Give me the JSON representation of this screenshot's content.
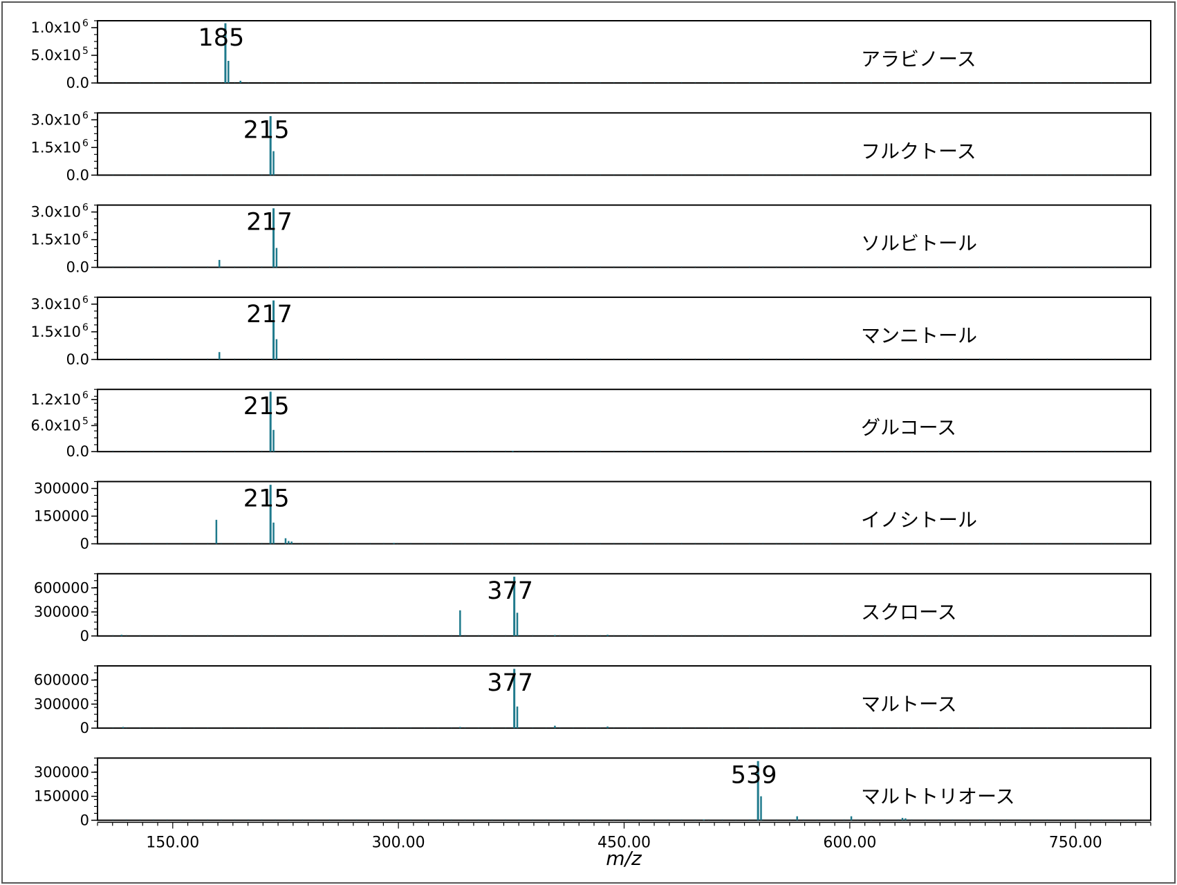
{
  "chart_data": {
    "type": "bar",
    "xlabel": "m/z",
    "xlim": [
      100,
      800
    ],
    "x_ticks": [
      "150.00",
      "300.00",
      "450.00",
      "600.00",
      "750.00"
    ],
    "x_tick_values": [
      150,
      300,
      450,
      600,
      750
    ],
    "color": "#1f7a8c",
    "panels": [
      {
        "name": "アラビノース",
        "ylim": [
          0,
          1100000
        ],
        "y_ticks": [
          {
            "v": 0,
            "base": "0.0",
            "sup": ""
          },
          {
            "v": 500000,
            "base": "5.0x10",
            "sup": "5"
          },
          {
            "v": 1000000,
            "base": "1.0x10",
            "sup": "6"
          }
        ],
        "peak_label": "185",
        "peaks": [
          [
            185,
            1080000
          ],
          [
            187,
            400000
          ],
          [
            195,
            40000
          ]
        ]
      },
      {
        "name": "フルクトース",
        "ylim": [
          0,
          3300000
        ],
        "y_ticks": [
          {
            "v": 0,
            "base": "0.0",
            "sup": ""
          },
          {
            "v": 1500000,
            "base": "1.5x10",
            "sup": "6"
          },
          {
            "v": 3000000,
            "base": "3.0x10",
            "sup": "6"
          }
        ],
        "peak_label": "215",
        "peaks": [
          [
            215,
            3200000
          ],
          [
            217,
            1300000
          ]
        ]
      },
      {
        "name": "ソルビトール",
        "ylim": [
          0,
          3300000
        ],
        "y_ticks": [
          {
            "v": 0,
            "base": "0.0",
            "sup": ""
          },
          {
            "v": 1500000,
            "base": "1.5x10",
            "sup": "6"
          },
          {
            "v": 3000000,
            "base": "3.0x10",
            "sup": "6"
          }
        ],
        "peak_label": "217",
        "peaks": [
          [
            181,
            400000
          ],
          [
            217,
            3200000
          ],
          [
            219,
            1050000
          ]
        ]
      },
      {
        "name": "マンニトール",
        "ylim": [
          0,
          3300000
        ],
        "y_ticks": [
          {
            "v": 0,
            "base": "0.0",
            "sup": ""
          },
          {
            "v": 1500000,
            "base": "1.5x10",
            "sup": "6"
          },
          {
            "v": 3000000,
            "base": "3.0x10",
            "sup": "6"
          }
        ],
        "peak_label": "217",
        "peaks": [
          [
            181,
            400000
          ],
          [
            217,
            3200000
          ],
          [
            219,
            1100000
          ]
        ]
      },
      {
        "name": "グルコース",
        "ylim": [
          0,
          1400000
        ],
        "y_ticks": [
          {
            "v": 0,
            "base": "0.0",
            "sup": ""
          },
          {
            "v": 600000,
            "base": "6.0x10",
            "sup": "5"
          },
          {
            "v": 1200000,
            "base": "1.2x10",
            "sup": "6"
          }
        ],
        "peak_label": "215",
        "peaks": [
          [
            215,
            1380000
          ],
          [
            217,
            500000
          ],
          [
            376,
            20000
          ]
        ]
      },
      {
        "name": "イノシトール",
        "ylim": [
          0,
          330000
        ],
        "y_ticks": [
          {
            "v": 0,
            "base": "0",
            "sup": ""
          },
          {
            "v": 150000,
            "base": "150000",
            "sup": ""
          },
          {
            "v": 300000,
            "base": "300000",
            "sup": ""
          }
        ],
        "peak_label": "215",
        "peaks": [
          [
            179,
            130000
          ],
          [
            215,
            320000
          ],
          [
            217,
            115000
          ],
          [
            225,
            30000
          ],
          [
            227,
            15000
          ],
          [
            229,
            12000
          ],
          [
            297,
            5000
          ]
        ]
      },
      {
        "name": "スクロース",
        "ylim": [
          0,
          760000
        ],
        "y_ticks": [
          {
            "v": 0,
            "base": "0",
            "sup": ""
          },
          {
            "v": 300000,
            "base": "300000",
            "sup": ""
          },
          {
            "v": 600000,
            "base": "600000",
            "sup": ""
          }
        ],
        "peak_label": "377",
        "peaks": [
          [
            116,
            15000
          ],
          [
            341,
            320000
          ],
          [
            377,
            740000
          ],
          [
            379,
            290000
          ],
          [
            404,
            12000
          ],
          [
            439,
            15000
          ]
        ]
      },
      {
        "name": "マルトース",
        "ylim": [
          0,
          760000
        ],
        "y_ticks": [
          {
            "v": 0,
            "base": "0",
            "sup": ""
          },
          {
            "v": 300000,
            "base": "300000",
            "sup": ""
          },
          {
            "v": 600000,
            "base": "600000",
            "sup": ""
          }
        ],
        "peak_label": "377",
        "peaks": [
          [
            117,
            15000
          ],
          [
            341,
            15000
          ],
          [
            377,
            740000
          ],
          [
            379,
            270000
          ],
          [
            404,
            30000
          ],
          [
            439,
            20000
          ]
        ]
      },
      {
        "name": "マルトトリオース",
        "ylim": [
          0,
          380000
        ],
        "y_ticks": [
          {
            "v": 0,
            "base": "0",
            "sup": ""
          },
          {
            "v": 150000,
            "base": "150000",
            "sup": ""
          },
          {
            "v": 300000,
            "base": "300000",
            "sup": ""
          }
        ],
        "peak_label": "539",
        "peaks": [
          [
            503,
            5000
          ],
          [
            539,
            370000
          ],
          [
            541,
            150000
          ],
          [
            565,
            25000
          ],
          [
            601,
            25000
          ],
          [
            635,
            15000
          ],
          [
            637,
            12000
          ]
        ]
      }
    ]
  }
}
